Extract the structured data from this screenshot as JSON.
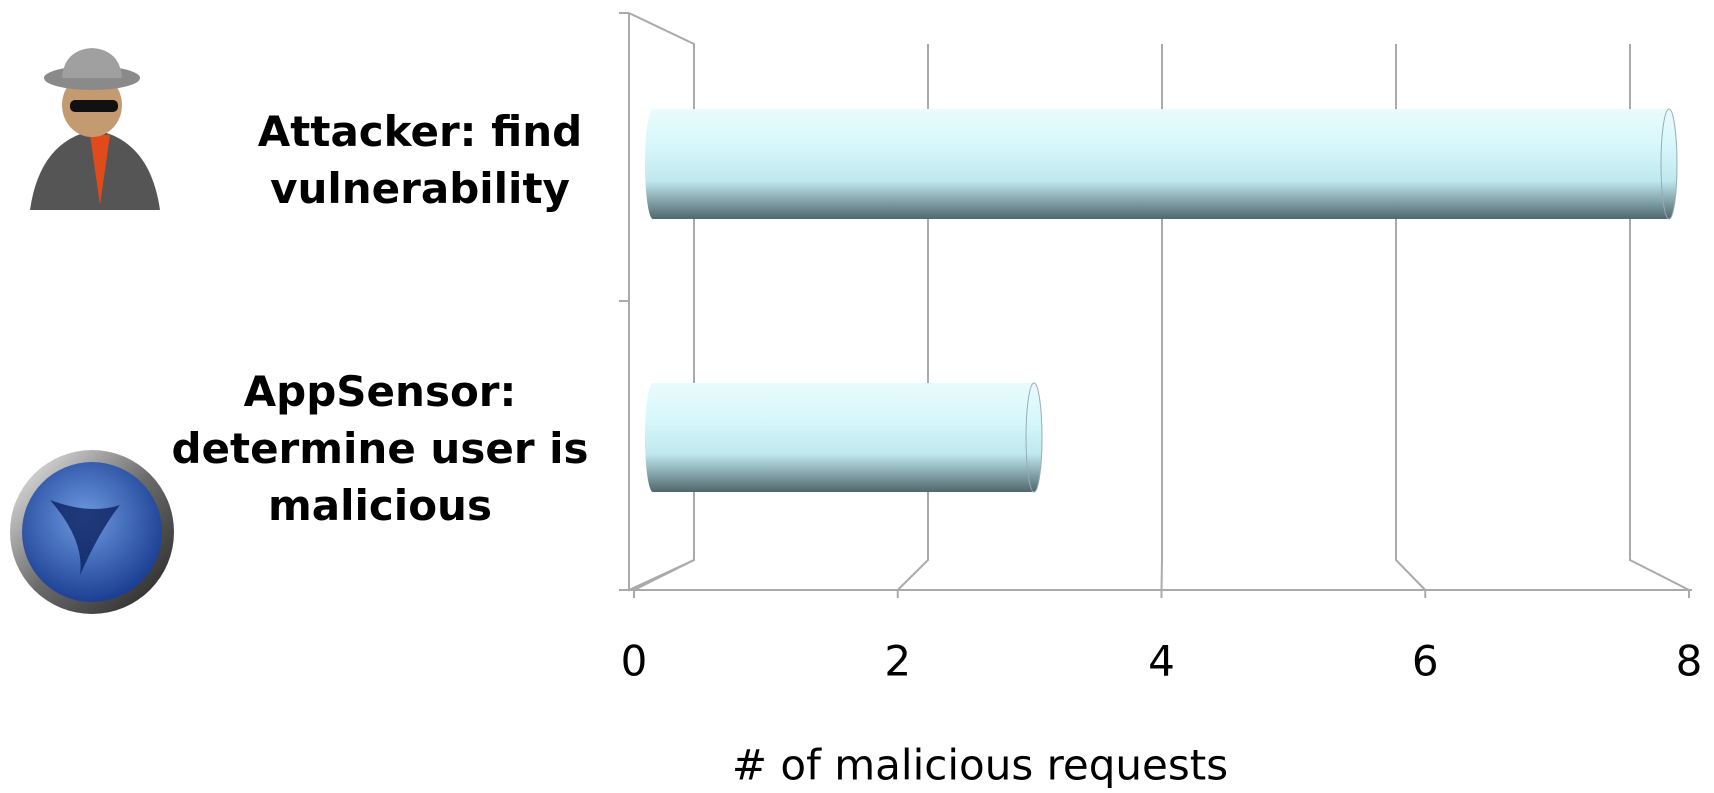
{
  "chart_data": {
    "type": "bar",
    "orientation": "horizontal",
    "categories": [
      "Attacker:  find vulnerability",
      "AppSensor: determine user is malicious"
    ],
    "values": [
      8,
      3
    ],
    "color": "#bfe9ee",
    "xlim": [
      0,
      8
    ],
    "xticks": [
      0,
      2,
      4,
      6,
      8
    ],
    "x_label": "# of malicious requests",
    "grid": true
  }
}
